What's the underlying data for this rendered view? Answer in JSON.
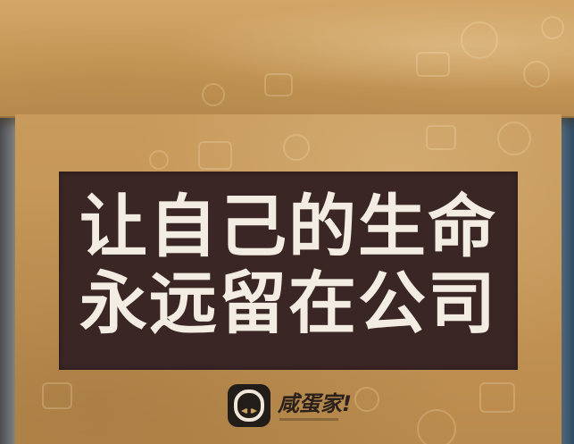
{
  "slogan": {
    "line1": "让自己的生命",
    "line2": "永远留在公司"
  },
  "logo": {
    "name": "咸蛋家!",
    "icon": "mascot-face-icon"
  },
  "colors": {
    "cardboard": "#c89a5b",
    "banner": "#3a2624",
    "slogan_text": "#f3ece2",
    "logo_badge": "#231d1a"
  }
}
